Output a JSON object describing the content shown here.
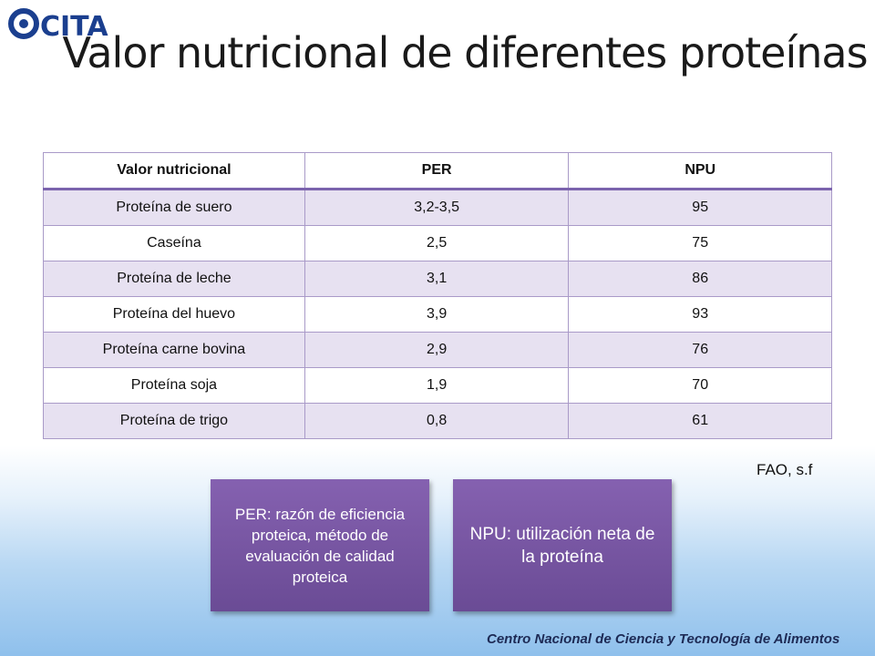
{
  "logo": {
    "text": "CITA",
    "color": "#1b3f8f"
  },
  "title": "Valor nutricional de diferentes proteínas",
  "table": {
    "headers": [
      "Valor nutricional",
      "PER",
      "NPU"
    ],
    "rows": [
      [
        "Proteína de suero",
        "3,2-3,5",
        "95"
      ],
      [
        "Caseína",
        "2,5",
        "75"
      ],
      [
        "Proteína de leche",
        "3,1",
        "86"
      ],
      [
        "Proteína del huevo",
        "3,9",
        "93"
      ],
      [
        "Proteína carne bovina",
        "2,9",
        "76"
      ],
      [
        "Proteína soja",
        "1,9",
        "70"
      ],
      [
        "Proteína de trigo",
        "0,8",
        "61"
      ]
    ]
  },
  "source": "FAO, s.f",
  "boxes": {
    "per": "PER: razón de eficiencia proteica, método de evaluación de calidad proteica",
    "npu": "NPU: utilización neta de la proteína"
  },
  "footer": "Centro Nacional de Ciencia y Tecnología de Alimentos",
  "colors": {
    "accent": "#7b63ad",
    "row_shade": "#e7e1f1",
    "box": "#7553a3"
  }
}
